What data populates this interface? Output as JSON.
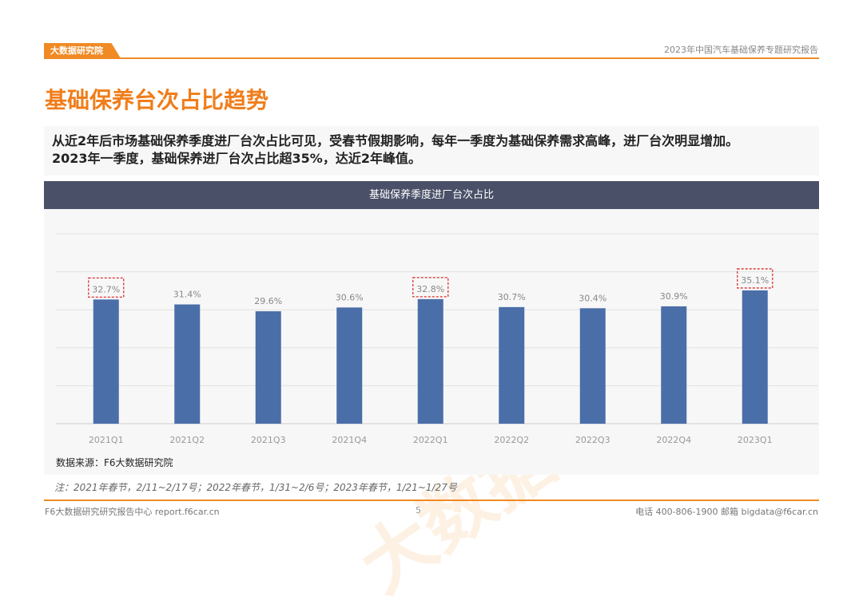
{
  "header": {
    "logo": "大数据研究院",
    "report_title": "2023年中国汽车基础保养专题研究报告"
  },
  "page_title": "基础保养台次占比趋势",
  "summary": [
    "从近2年后市场基础保养季度进厂台次占比可见，受春节假期影响，每年一季度为基础保养需求高峰，进厂台次明显增加。",
    "2023年一季度，基础保养进厂台次占比超35%，达近2年峰值。"
  ],
  "chart_data": {
    "type": "bar",
    "title": "基础保养季度进厂台次占比",
    "categories": [
      "2021Q1",
      "2021Q2",
      "2021Q3",
      "2021Q4",
      "2022Q1",
      "2022Q2",
      "2022Q3",
      "2022Q4",
      "2023Q1"
    ],
    "values": [
      32.7,
      31.4,
      29.6,
      30.6,
      32.8,
      30.7,
      30.4,
      30.9,
      35.1
    ],
    "labels": [
      "32.7%",
      "31.4%",
      "29.6%",
      "30.6%",
      "32.8%",
      "30.7%",
      "30.4%",
      "30.9%",
      "35.1%"
    ],
    "highlighted": [
      "2021Q1",
      "2022Q1",
      "2023Q1"
    ],
    "ylim": [
      0,
      50
    ],
    "grid": true,
    "color": "#4a6ea8",
    "highlight_color": "#d9302c"
  },
  "source": "数据来源：F6大数据研究院",
  "note": "注：2021年春节，2/11~2/17号；2022年春节，1/31~2/6号；2023年春节，1/21~1/27号",
  "footer": {
    "left": "F6大数据研究研究报告中心 report.f6car.cn",
    "page": "5",
    "right": "电话 400-806-1900  邮箱 bigdata@f6car.cn"
  },
  "watermark": "大数据研究院"
}
